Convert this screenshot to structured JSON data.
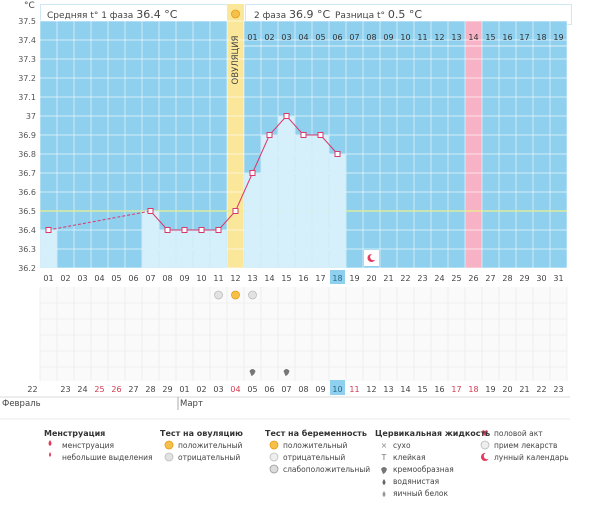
{
  "header": {
    "unit": "°C",
    "phase1_label": "Средняя t° 1 фаза",
    "phase1_value": "36.4 °C",
    "phase2_label": "2 фаза",
    "phase2_value": "36.9 °C",
    "diff_label": "Разница t°",
    "diff_value": "0.5 °C",
    "ovulation_label": "ОВУЛЯЦИЯ",
    "phase2_days": [
      "01",
      "02",
      "03",
      "04",
      "05",
      "06",
      "07",
      "08",
      "09",
      "10",
      "11",
      "12",
      "13",
      "14",
      "15",
      "16",
      "17",
      "18",
      "19"
    ]
  },
  "chart_data": {
    "type": "line",
    "title": "",
    "ylabel": "°C",
    "ylim": [
      36.2,
      37.5
    ],
    "yticks": [
      "37.5",
      "37.4",
      "37.3",
      "37.2",
      "37.1",
      "37",
      "36.9",
      "36.8",
      "36.7",
      "36.6",
      "36.5",
      "36.4",
      "36.3",
      "36.2"
    ],
    "reference_line": 36.5,
    "x": [
      "01",
      "02",
      "03",
      "04",
      "05",
      "06",
      "07",
      "08",
      "09",
      "10",
      "11",
      "12",
      "13",
      "14",
      "15",
      "16",
      "17",
      "18",
      "19",
      "20",
      "21",
      "22",
      "23",
      "24",
      "25",
      "26",
      "27",
      "28",
      "29",
      "30",
      "31"
    ],
    "series": [
      {
        "values": [
          36.4,
          null,
          null,
          null,
          null,
          null,
          36.5,
          36.4,
          36.4,
          36.4,
          36.4,
          36.5,
          36.7,
          36.9,
          37.0,
          36.9,
          36.9,
          36.8,
          null,
          null,
          null,
          null,
          null,
          null,
          null,
          null,
          null,
          null,
          null,
          null,
          null
        ]
      }
    ],
    "ovulation_day": "12",
    "highlighted_day": "18",
    "marked_day": "26",
    "calendar_marker_day": "20"
  },
  "markers": {
    "ovulation_test_day": "12",
    "cervical_days": [
      "13",
      "15"
    ]
  },
  "calendar": {
    "dates": [
      "22",
      "23",
      "24",
      "25",
      "26",
      "27",
      "28",
      "29",
      "01",
      "02",
      "03",
      "04",
      "05",
      "06",
      "07",
      "08",
      "09",
      "10",
      "11",
      "12",
      "13",
      "14",
      "15",
      "16",
      "17",
      "18",
      "19",
      "20",
      "21",
      "22",
      "23"
    ],
    "red_dates_idx": [
      3,
      4,
      11,
      18,
      24,
      25
    ],
    "highlight_idx": 17,
    "month1": "Февраль",
    "month2": "Март"
  },
  "legend": {
    "menstruation": {
      "title": "Менструация",
      "items": [
        "менструация",
        "небольшие выделения"
      ]
    },
    "ovulation_test": {
      "title": "Тест на овуляцию",
      "items": [
        "положительный",
        "отрицательный"
      ]
    },
    "pregnancy_test": {
      "title": "Тест на беременность",
      "items": [
        "положительный",
        "отрицательный",
        "слабоположительный"
      ]
    },
    "cervical_fluid": {
      "title": "Цервикальная жидкость",
      "items": [
        "сухо",
        "клейкая",
        "кремообразная",
        "водянистая",
        "яичный белок"
      ]
    },
    "other": {
      "items": [
        "половой акт",
        "прием лекарств",
        "лунный календарь"
      ]
    }
  }
}
